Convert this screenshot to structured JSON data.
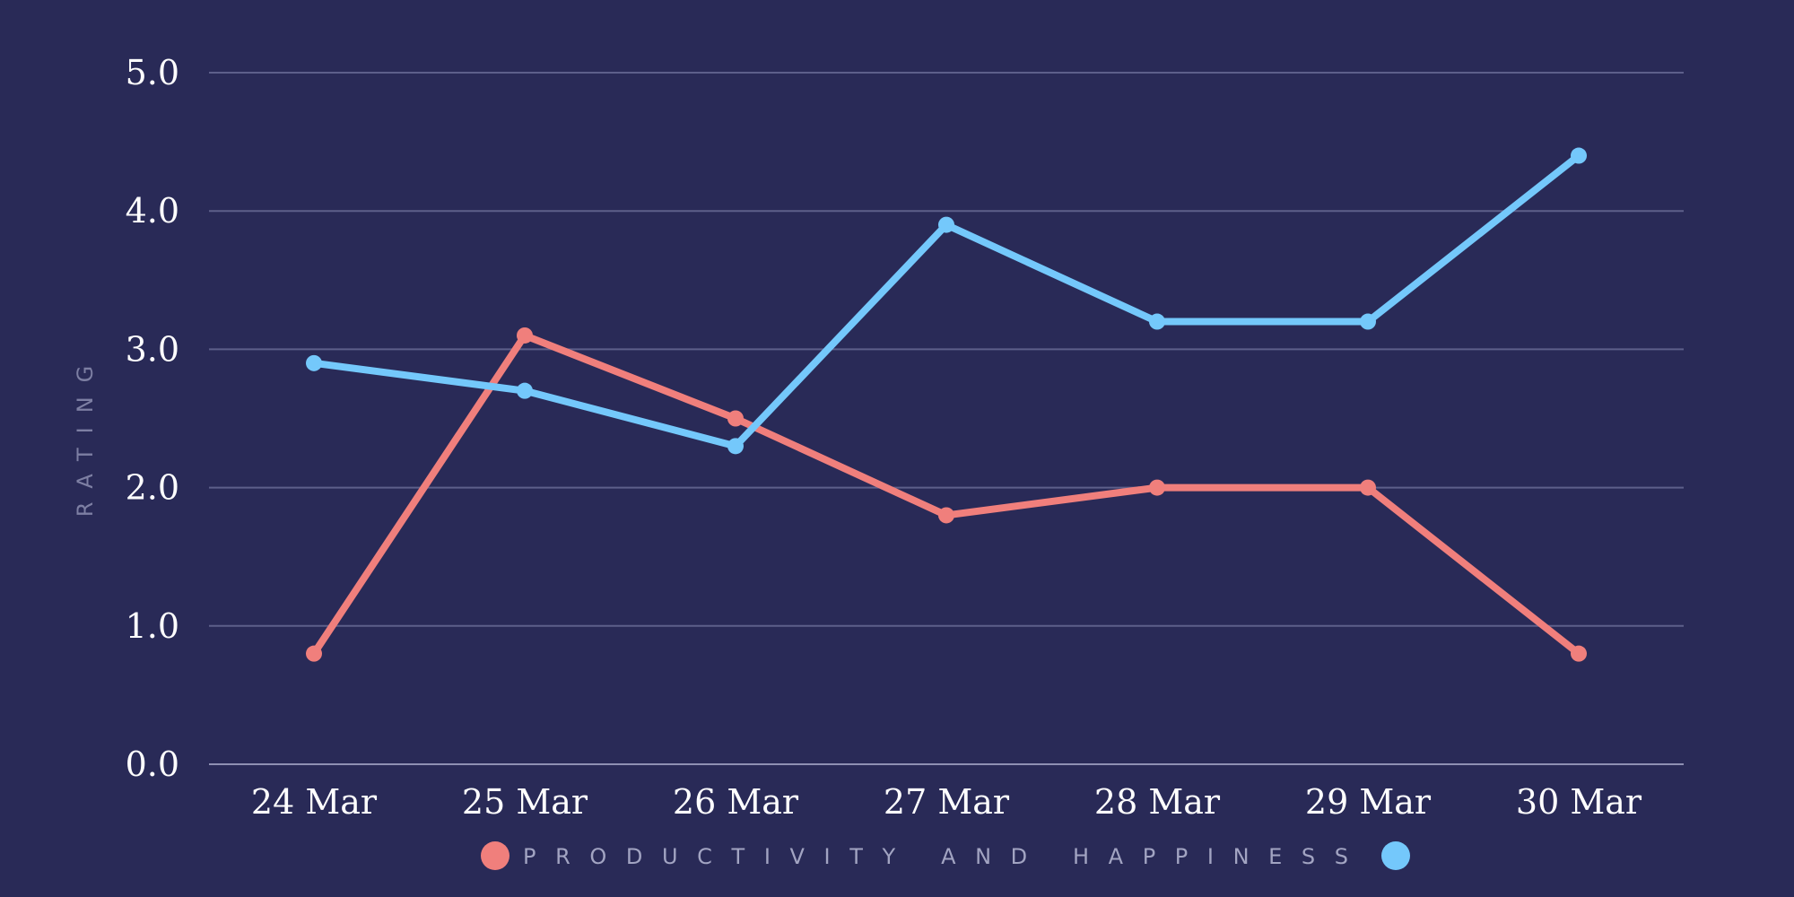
{
  "chart_data": {
    "type": "line",
    "title": "",
    "xlabel": "",
    "ylabel": "RATING",
    "categories": [
      "24 Mar",
      "25 Mar",
      "26 Mar",
      "27 Mar",
      "28 Mar",
      "29 Mar",
      "30 Mar"
    ],
    "ylim": [
      0,
      5
    ],
    "yticks": [
      "0.0",
      "1.0",
      "2.0",
      "3.0",
      "4.0",
      "5.0"
    ],
    "grid": true,
    "legend_position": "bottom",
    "legend_label": "PRODUCTIVITY AND HAPPINESS",
    "background": "#292a57",
    "series": [
      {
        "name": "Productivity",
        "color": "#f07f7c",
        "values": [
          0.8,
          3.1,
          2.5,
          1.8,
          2.0,
          2.0,
          0.8
        ]
      },
      {
        "name": "Happiness",
        "color": "#74c8fb",
        "values": [
          2.9,
          2.7,
          2.3,
          3.9,
          3.2,
          3.2,
          4.4
        ]
      }
    ]
  }
}
